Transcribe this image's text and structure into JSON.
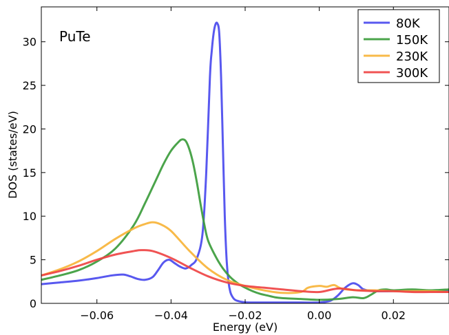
{
  "chart_data": {
    "type": "line",
    "annotation": "PuTe",
    "xlabel": "Energy (eV)",
    "ylabel": "DOS (states/eV)",
    "xlim": [
      -0.075,
      0.035
    ],
    "ylim": [
      0,
      34
    ],
    "xticks": [
      -0.06,
      -0.04,
      -0.02,
      0.0,
      0.02
    ],
    "xtick_labels": [
      "−0.06",
      "−0.04",
      "−0.02",
      "0.00",
      "0.02"
    ],
    "yticks": [
      0,
      5,
      10,
      15,
      20,
      25,
      30
    ],
    "ytick_labels": [
      "0",
      "5",
      "10",
      "15",
      "20",
      "25",
      "30"
    ],
    "grid": false,
    "legend_position": "top-right",
    "series": [
      {
        "name": "80K",
        "color": "#4a4aee",
        "x": [
          -0.075,
          -0.07,
          -0.065,
          -0.06,
          -0.056,
          -0.053,
          -0.051,
          -0.049,
          -0.047,
          -0.045,
          -0.0435,
          -0.042,
          -0.0405,
          -0.039,
          -0.0375,
          -0.036,
          -0.0345,
          -0.033,
          -0.0315,
          -0.0305,
          -0.0295,
          -0.029,
          -0.0285,
          -0.028,
          -0.0275,
          -0.027,
          -0.0265,
          -0.026,
          -0.0255,
          -0.025,
          -0.0245,
          -0.024,
          -0.0235,
          -0.023,
          -0.0225,
          -0.022,
          -0.0215,
          -0.021,
          -0.0205,
          -0.02,
          -0.018,
          -0.015,
          -0.01,
          -0.005,
          0.0,
          0.003,
          0.005,
          0.007,
          0.009,
          0.0105,
          0.012,
          0.015,
          0.02,
          0.025,
          0.03,
          0.035
        ],
        "y": [
          2.2,
          2.4,
          2.6,
          2.9,
          3.2,
          3.3,
          3.1,
          2.8,
          2.7,
          3.0,
          3.8,
          4.7,
          5.0,
          4.6,
          4.2,
          4.0,
          4.4,
          5.2,
          8.0,
          15.0,
          26.0,
          29.0,
          31.0,
          32.0,
          32.1,
          31.0,
          26.0,
          18.0,
          10.0,
          5.0,
          2.5,
          1.3,
          0.8,
          0.5,
          0.35,
          0.28,
          0.22,
          0.18,
          0.15,
          0.12,
          0.1,
          0.1,
          0.1,
          0.1,
          0.1,
          0.3,
          0.9,
          1.8,
          2.3,
          2.1,
          1.6,
          1.4,
          1.4,
          1.4,
          1.4,
          1.4
        ]
      },
      {
        "name": "150K",
        "color": "#3c9c3c",
        "x": [
          -0.075,
          -0.07,
          -0.065,
          -0.06,
          -0.055,
          -0.05,
          -0.047,
          -0.044,
          -0.042,
          -0.04,
          -0.038,
          -0.037,
          -0.036,
          -0.035,
          -0.034,
          -0.033,
          -0.032,
          -0.031,
          -0.03,
          -0.028,
          -0.026,
          -0.024,
          -0.022,
          -0.02,
          -0.018,
          -0.016,
          -0.014,
          -0.012,
          -0.01,
          -0.005,
          0.0,
          0.005,
          0.009,
          0.012,
          0.014,
          0.016,
          0.018,
          0.02,
          0.025,
          0.03,
          0.035
        ],
        "y": [
          2.7,
          3.2,
          3.8,
          4.8,
          6.3,
          9.0,
          11.5,
          14.2,
          16.0,
          17.5,
          18.5,
          18.8,
          18.6,
          17.6,
          16.0,
          13.8,
          11.3,
          9.0,
          7.2,
          5.4,
          4.0,
          3.0,
          2.3,
          1.8,
          1.4,
          1.1,
          0.9,
          0.7,
          0.6,
          0.5,
          0.4,
          0.5,
          0.7,
          0.6,
          1.0,
          1.5,
          1.6,
          1.5,
          1.6,
          1.5,
          1.6
        ]
      },
      {
        "name": "230K",
        "color": "#f7b43a",
        "x": [
          -0.075,
          -0.07,
          -0.065,
          -0.06,
          -0.055,
          -0.05,
          -0.047,
          -0.045,
          -0.043,
          -0.04,
          -0.035,
          -0.03,
          -0.025,
          -0.02,
          -0.015,
          -0.01,
          -0.005,
          -0.003,
          0.0,
          0.002,
          0.004,
          0.006,
          0.01,
          0.015,
          0.02,
          0.025,
          0.03,
          0.035
        ],
        "y": [
          3.2,
          3.9,
          4.8,
          6.0,
          7.4,
          8.6,
          9.1,
          9.3,
          9.1,
          8.3,
          6.0,
          4.0,
          2.7,
          2.0,
          1.5,
          1.2,
          1.3,
          1.8,
          2.0,
          1.9,
          2.1,
          1.7,
          1.5,
          1.5,
          1.4,
          1.4,
          1.4,
          1.3
        ]
      },
      {
        "name": "300K",
        "color": "#ef4444",
        "x": [
          -0.075,
          -0.07,
          -0.065,
          -0.06,
          -0.055,
          -0.05,
          -0.048,
          -0.045,
          -0.04,
          -0.035,
          -0.03,
          -0.025,
          -0.02,
          -0.015,
          -0.01,
          -0.005,
          0.0,
          0.005,
          0.01,
          0.015,
          0.02,
          0.025,
          0.03,
          0.035
        ],
        "y": [
          3.2,
          3.7,
          4.3,
          5.0,
          5.6,
          6.0,
          6.1,
          6.0,
          5.2,
          4.1,
          3.1,
          2.4,
          2.0,
          1.8,
          1.6,
          1.4,
          1.3,
          1.7,
          1.5,
          1.4,
          1.4,
          1.3,
          1.3,
          1.3
        ]
      }
    ]
  }
}
